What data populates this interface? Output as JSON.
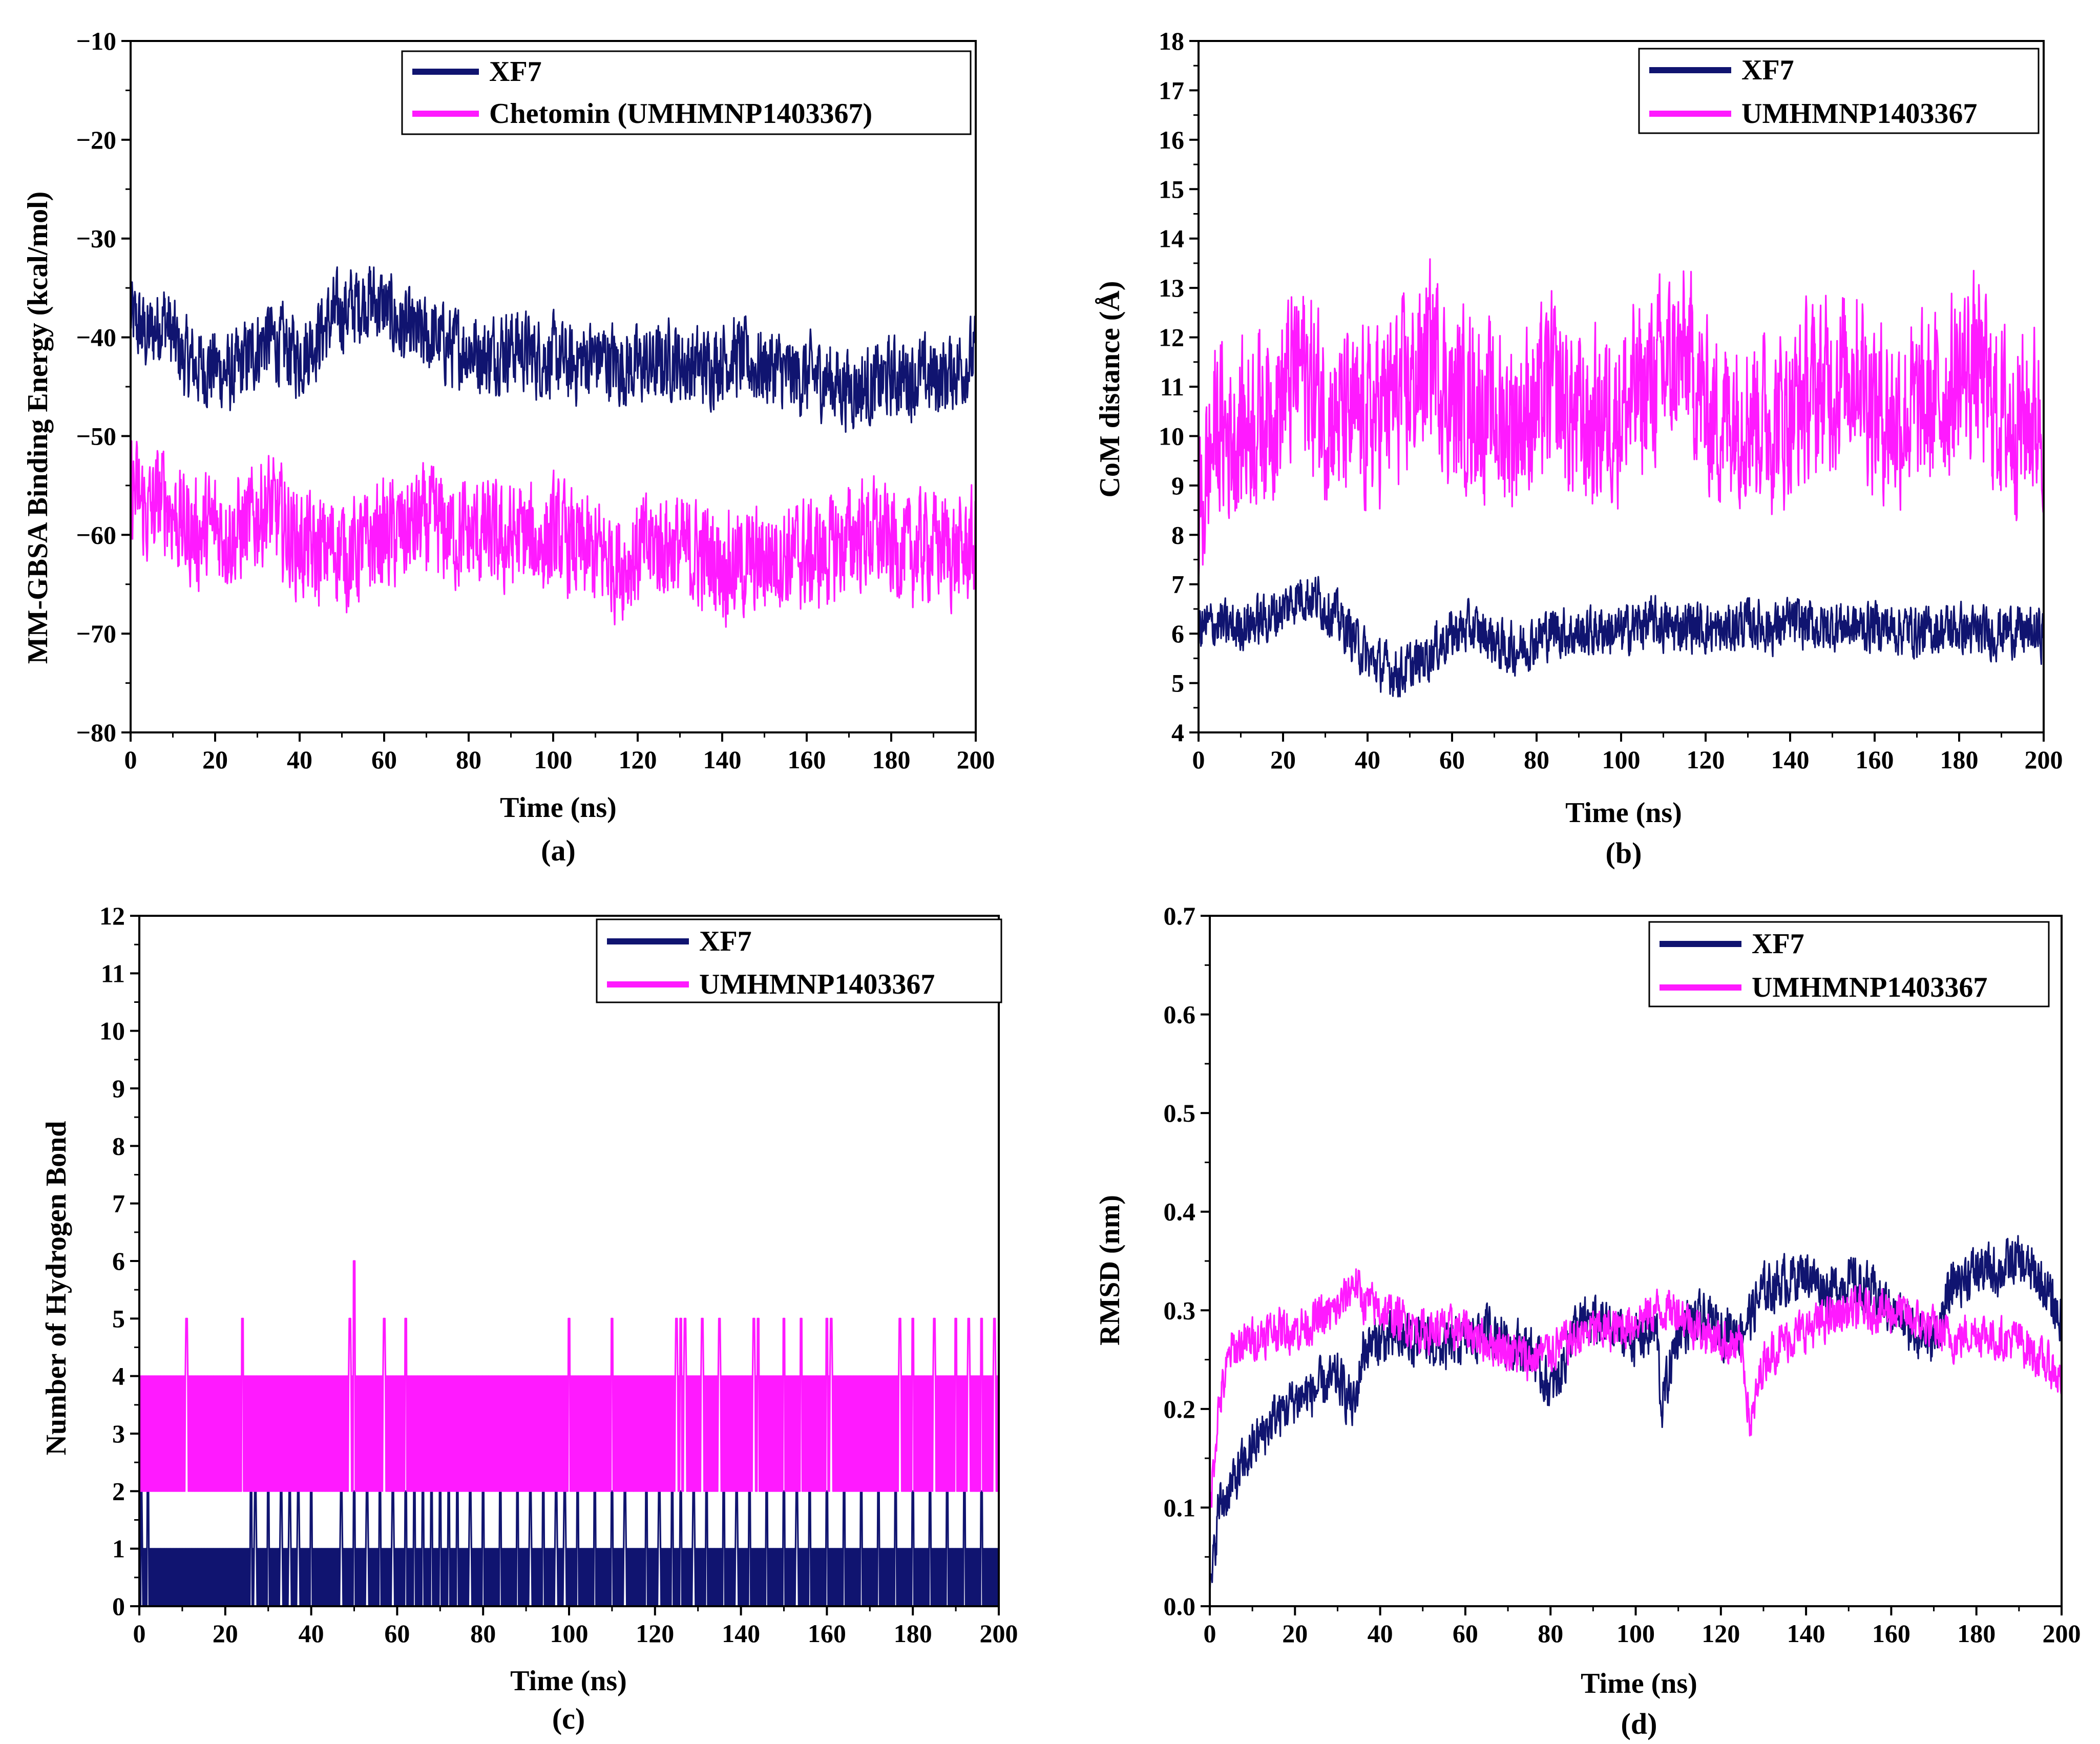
{
  "colors": {
    "xf7": "#101470",
    "ligand": "#ff1aff",
    "axis": "#000000"
  },
  "chart_data": [
    {
      "type": "line",
      "panel_label": "(a)",
      "xlabel": "Time (ns)",
      "ylabel": "MM-GBSA Binding Energy (kcal/mol)",
      "xlim": [
        0,
        200
      ],
      "ylim": [
        -80,
        -10
      ],
      "xticks": [
        0,
        20,
        40,
        60,
        80,
        100,
        120,
        140,
        160,
        180,
        200
      ],
      "yticks": [
        -80,
        -70,
        -60,
        -50,
        -40,
        -30,
        -20,
        -10
      ],
      "ytick_labels": [
        "−80",
        "−70",
        "−60",
        "−50",
        "−40",
        "−30",
        "−20",
        "−10"
      ],
      "legend_position": "top-right",
      "series": [
        {
          "name": "XF7",
          "color": "#101470",
          "x": [
            0,
            4,
            8,
            12,
            16,
            20,
            24,
            28,
            32,
            36,
            40,
            44,
            48,
            52,
            56,
            60,
            64,
            68,
            72,
            76,
            80,
            84,
            88,
            92,
            96,
            100,
            104,
            108,
            112,
            116,
            120,
            124,
            128,
            132,
            136,
            140,
            144,
            148,
            152,
            156,
            160,
            164,
            168,
            172,
            176,
            180,
            184,
            188,
            192,
            196,
            200
          ],
          "values": [
            -38,
            -40,
            -38,
            -42,
            -43,
            -43,
            -44,
            -42,
            -40,
            -41,
            -42,
            -40,
            -38,
            -37,
            -36,
            -37,
            -39,
            -40,
            -40,
            -41,
            -41,
            -42,
            -41,
            -41,
            -42,
            -42,
            -43,
            -42,
            -42,
            -43,
            -43,
            -43,
            -42,
            -43,
            -43,
            -42,
            -42,
            -43,
            -43,
            -44,
            -44,
            -44,
            -45,
            -45,
            -45,
            -44,
            -44,
            -44,
            -44,
            -43,
            -42
          ],
          "spread": 5.5
        },
        {
          "name": "Chetomin (UMHMNP1403367)",
          "color": "#ff1aff",
          "x": [
            0,
            4,
            8,
            12,
            16,
            20,
            24,
            28,
            32,
            36,
            40,
            44,
            48,
            52,
            56,
            60,
            64,
            68,
            72,
            76,
            80,
            84,
            88,
            92,
            96,
            100,
            104,
            108,
            112,
            116,
            120,
            124,
            128,
            132,
            136,
            140,
            144,
            148,
            152,
            156,
            160,
            164,
            168,
            172,
            176,
            180,
            184,
            188,
            192,
            196,
            200
          ],
          "values": [
            -55,
            -58,
            -56,
            -59,
            -60,
            -59,
            -60,
            -59,
            -57,
            -59,
            -61,
            -62,
            -61,
            -62,
            -61,
            -60,
            -60,
            -59,
            -59,
            -60,
            -60,
            -60,
            -61,
            -60,
            -61,
            -60,
            -61,
            -62,
            -62,
            -63,
            -62,
            -61,
            -61,
            -62,
            -62,
            -63,
            -63,
            -63,
            -62,
            -62,
            -62,
            -62,
            -61,
            -60,
            -60,
            -61,
            -62,
            -61,
            -61,
            -62,
            -61
          ],
          "spread": 7.5
        }
      ]
    },
    {
      "type": "line",
      "panel_label": "(b)",
      "xlabel": "Time (ns)",
      "ylabel": "CoM distance (Å)",
      "xlim": [
        0,
        200
      ],
      "ylim": [
        4,
        18
      ],
      "xticks": [
        0,
        20,
        40,
        60,
        80,
        100,
        120,
        140,
        160,
        180,
        200
      ],
      "yticks": [
        4,
        5,
        6,
        7,
        8,
        9,
        10,
        11,
        12,
        13,
        14,
        15,
        16,
        17,
        18
      ],
      "ytick_labels": [
        "4",
        "5",
        "6",
        "7",
        "8",
        "9",
        "10",
        "11",
        "12",
        "13",
        "14",
        "15",
        "16",
        "17",
        "18"
      ],
      "legend_position": "top-right",
      "series": [
        {
          "name": "XF7",
          "color": "#101470",
          "x": [
            0,
            4,
            8,
            12,
            16,
            20,
            24,
            28,
            32,
            36,
            40,
            44,
            48,
            52,
            56,
            60,
            64,
            68,
            72,
            76,
            80,
            84,
            88,
            92,
            96,
            100,
            104,
            108,
            112,
            116,
            120,
            124,
            128,
            132,
            136,
            140,
            144,
            148,
            152,
            156,
            160,
            164,
            168,
            172,
            176,
            180,
            184,
            188,
            192,
            196,
            200
          ],
          "values": [
            6.1,
            6.2,
            6.1,
            6.2,
            6.3,
            6.5,
            6.8,
            6.7,
            6.4,
            6.0,
            5.5,
            5.3,
            5.2,
            5.4,
            5.7,
            6.0,
            6.1,
            6.0,
            5.7,
            5.7,
            5.9,
            6.1,
            6.0,
            6.0,
            6.1,
            6.0,
            6.2,
            6.2,
            6.1,
            6.2,
            6.1,
            6.0,
            6.2,
            6.2,
            6.1,
            6.2,
            6.2,
            6.1,
            6.2,
            6.1,
            6.2,
            6.1,
            6.1,
            6.0,
            6.1,
            6.1,
            6.0,
            6.0,
            6.1,
            6.0,
            6.0
          ],
          "spread": 0.7
        },
        {
          "name": "UMHMNP1403367",
          "color": "#ff1aff",
          "x": [
            0,
            4,
            8,
            12,
            16,
            20,
            24,
            28,
            32,
            36,
            40,
            44,
            48,
            52,
            56,
            60,
            64,
            68,
            72,
            76,
            80,
            84,
            88,
            92,
            96,
            100,
            104,
            108,
            112,
            116,
            120,
            124,
            128,
            132,
            136,
            140,
            144,
            148,
            152,
            156,
            160,
            164,
            168,
            172,
            176,
            180,
            184,
            188,
            192,
            196,
            200
          ],
          "values": [
            8.2,
            10.2,
            10.0,
            10.3,
            10.5,
            10.8,
            11.5,
            10.8,
            10.4,
            10.2,
            10.3,
            10.6,
            10.8,
            11.2,
            11.8,
            10.6,
            10.8,
            10.5,
            10.3,
            10.4,
            10.6,
            11.0,
            10.5,
            10.2,
            10.4,
            10.6,
            10.8,
            11.2,
            11.4,
            11.6,
            10.5,
            10.4,
            10.6,
            10.5,
            10.3,
            10.5,
            10.8,
            11.0,
            11.2,
            11.5,
            10.6,
            10.4,
            10.5,
            10.5,
            10.8,
            11.2,
            11.5,
            10.6,
            10.3,
            10.4,
            10.5
          ],
          "spread": 2.4
        }
      ]
    },
    {
      "type": "line",
      "panel_label": "(c)",
      "xlabel": "Time (ns)",
      "ylabel": "Number of Hydrogen Bond",
      "xlim": [
        0,
        200
      ],
      "ylim": [
        0,
        12
      ],
      "xticks": [
        0,
        20,
        40,
        60,
        80,
        100,
        120,
        140,
        160,
        180,
        200
      ],
      "yticks": [
        0,
        1,
        2,
        3,
        4,
        5,
        6,
        7,
        8,
        9,
        10,
        11,
        12
      ],
      "ytick_labels": [
        "0",
        "1",
        "2",
        "3",
        "4",
        "5",
        "6",
        "7",
        "8",
        "9",
        "10",
        "11",
        "12"
      ],
      "legend_position": "top-right",
      "series": [
        {
          "name": "XF7",
          "color": "#101470",
          "x": [
            0,
            200
          ],
          "values": [
            1,
            1
          ],
          "band_low": 0,
          "band_high": 1,
          "spike_to": 2,
          "spike_times": [
            0.5,
            2,
            26,
            27,
            30,
            33,
            35,
            37,
            40,
            47,
            50,
            53,
            56,
            59,
            62,
            64,
            66,
            68,
            70,
            72,
            74,
            77,
            80,
            84,
            88,
            91,
            94,
            97,
            99,
            102,
            106,
            110,
            113,
            118,
            121,
            124,
            126,
            129,
            132,
            136,
            139,
            142,
            146,
            150,
            153,
            156,
            160,
            164,
            168,
            172,
            176,
            180,
            184,
            188,
            192,
            196
          ]
        },
        {
          "name": "UMHMNP1403367",
          "color": "#ff1aff",
          "x": [
            0,
            200
          ],
          "values": [
            3,
            3
          ],
          "band_low": 2,
          "band_high": 4,
          "spike_to": 5,
          "spike_times": [
            11,
            24,
            49,
            57,
            62,
            100,
            110,
            125,
            126,
            127,
            131,
            135,
            143,
            144,
            150,
            154,
            160,
            161,
            177,
            180,
            185,
            190,
            193,
            196,
            199
          ],
          "peak": {
            "x": 50,
            "y": 6
          }
        }
      ]
    },
    {
      "type": "line",
      "panel_label": "(d)",
      "xlabel": "Time (ns)",
      "ylabel": "RMSD (nm)",
      "xlim": [
        0,
        200
      ],
      "ylim": [
        0.0,
        0.7
      ],
      "xticks": [
        0,
        20,
        40,
        60,
        80,
        100,
        120,
        140,
        160,
        180,
        200
      ],
      "yticks": [
        0.0,
        0.1,
        0.2,
        0.3,
        0.4,
        0.5,
        0.6,
        0.7
      ],
      "ytick_labels": [
        "0.0",
        "0.1",
        "0.2",
        "0.3",
        "0.4",
        "0.5",
        "0.6",
        "0.7"
      ],
      "legend_position": "top-right",
      "series": [
        {
          "name": "XF7",
          "color": "#101470",
          "x": [
            0,
            2,
            5,
            10,
            15,
            20,
            25,
            30,
            34,
            36,
            40,
            45,
            50,
            55,
            60,
            65,
            70,
            75,
            80,
            82,
            85,
            90,
            95,
            100,
            105,
            106,
            110,
            115,
            120,
            125,
            130,
            135,
            140,
            145,
            150,
            155,
            160,
            165,
            170,
            175,
            180,
            185,
            190,
            195,
            200
          ],
          "values": [
            0.0,
            0.1,
            0.12,
            0.16,
            0.19,
            0.21,
            0.22,
            0.23,
            0.2,
            0.26,
            0.27,
            0.27,
            0.27,
            0.26,
            0.27,
            0.28,
            0.27,
            0.26,
            0.22,
            0.23,
            0.28,
            0.29,
            0.28,
            0.27,
            0.28,
            0.2,
            0.28,
            0.29,
            0.28,
            0.28,
            0.32,
            0.33,
            0.34,
            0.32,
            0.33,
            0.32,
            0.3,
            0.28,
            0.27,
            0.33,
            0.34,
            0.34,
            0.35,
            0.33,
            0.29
          ],
          "spread": 0.035
        },
        {
          "name": "UMHMNP1403367",
          "color": "#ff1aff",
          "x": [
            0,
            2,
            5,
            10,
            15,
            20,
            25,
            30,
            34,
            36,
            40,
            45,
            50,
            55,
            60,
            65,
            70,
            75,
            80,
            85,
            90,
            95,
            100,
            105,
            110,
            115,
            120,
            125,
            127,
            130,
            135,
            140,
            145,
            150,
            155,
            160,
            165,
            170,
            175,
            180,
            185,
            190,
            195,
            200
          ],
          "values": [
            0.1,
            0.2,
            0.26,
            0.27,
            0.28,
            0.28,
            0.29,
            0.3,
            0.33,
            0.31,
            0.3,
            0.29,
            0.28,
            0.28,
            0.28,
            0.27,
            0.26,
            0.25,
            0.26,
            0.27,
            0.28,
            0.28,
            0.29,
            0.3,
            0.3,
            0.28,
            0.27,
            0.26,
            0.18,
            0.25,
            0.27,
            0.28,
            0.29,
            0.3,
            0.3,
            0.3,
            0.29,
            0.28,
            0.27,
            0.28,
            0.27,
            0.27,
            0.25,
            0.23
          ],
          "spread": 0.03
        }
      ]
    }
  ]
}
